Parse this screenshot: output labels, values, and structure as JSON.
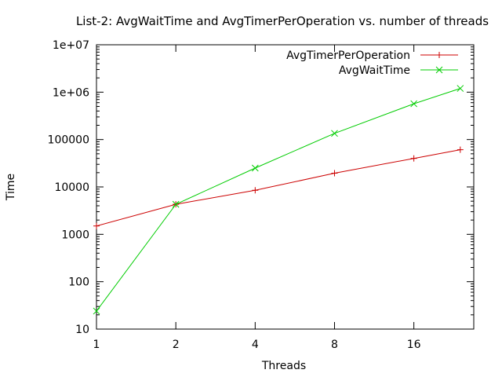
{
  "chart_data": {
    "type": "line",
    "title": "List-2: AvgWaitTime and AvgTimerPerOperation vs. number of threads",
    "xlabel": "Threads",
    "ylabel": "Time",
    "x_scale": "log2",
    "y_scale": "log10",
    "xlim": [
      1,
      27
    ],
    "ylim": [
      10,
      10000000
    ],
    "x_ticks": [
      1,
      2,
      4,
      8,
      16
    ],
    "x_tick_labels": [
      "1",
      "2",
      "4",
      "8",
      "16"
    ],
    "y_ticks": [
      10,
      100,
      1000,
      10000,
      100000,
      1000000,
      10000000
    ],
    "y_tick_labels": [
      "10",
      "100",
      "1000",
      "10000",
      "100000",
      "1e+06",
      "1e+07"
    ],
    "grid": false,
    "legend_position": "top-right",
    "series": [
      {
        "name": "AvgTimerPerOperation",
        "color": "#cc0000",
        "marker": "plus",
        "x": [
          1,
          2,
          4,
          8,
          16,
          24
        ],
        "y": [
          1500,
          4300,
          8500,
          19500,
          40000,
          61000
        ]
      },
      {
        "name": "AvgWaitTime",
        "color": "#00cc00",
        "marker": "cross",
        "x": [
          1,
          2,
          4,
          8,
          16,
          24
        ],
        "y": [
          24,
          4300,
          25000,
          135000,
          570000,
          1200000
        ]
      }
    ]
  }
}
